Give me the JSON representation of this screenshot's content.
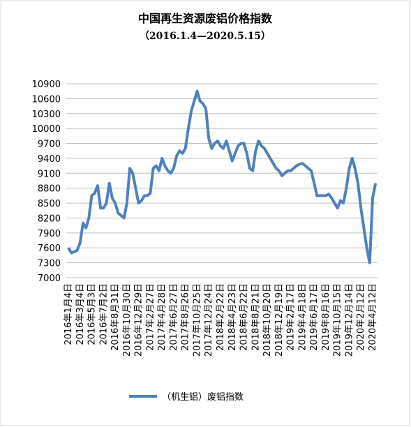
{
  "chart_data": {
    "type": "line",
    "title": "中国再生资源废铝价格指数",
    "subtitle": "（2016.1.4—2020.5.15）",
    "categories": [
      "2016年1月4日",
      null,
      null,
      null,
      "2016年3月4日",
      null,
      null,
      null,
      "2016年5月3日",
      null,
      null,
      null,
      "2016年7月2日",
      null,
      null,
      null,
      "2016年8月31日",
      null,
      null,
      null,
      "2016年10月30日",
      null,
      null,
      null,
      "2016年12月29日",
      null,
      null,
      null,
      "2017年2月27日",
      null,
      null,
      null,
      "2017年4月28日",
      null,
      null,
      null,
      "2017年6月27日",
      null,
      null,
      null,
      "2017年8月26日",
      null,
      null,
      null,
      "2017年10月25日",
      null,
      null,
      null,
      "2017年12月24日",
      null,
      null,
      null,
      "2018年2月22日",
      null,
      null,
      null,
      "2018年4月23日",
      null,
      null,
      null,
      "2018年6月22日",
      null,
      null,
      null,
      "2018年8月21日",
      null,
      null,
      null,
      "2018年10月20日",
      null,
      null,
      null,
      "2018年12月19日",
      null,
      null,
      null,
      "2019年2月17日",
      null,
      null,
      null,
      "2019年4月18日",
      null,
      null,
      null,
      "2019年6月17日",
      null,
      null,
      null,
      "2019年8月16日",
      null,
      null,
      null,
      "2019年10月15日",
      null,
      null,
      null,
      "2019年12月14日",
      null,
      null,
      null,
      "2020年2月12日",
      null,
      null,
      null,
      "2020年4月12日",
      null
    ],
    "series": [
      {
        "name": "（机生铝）废铝指数",
        "color": "#4f81bd",
        "values": [
          7600,
          7500,
          7520,
          7550,
          7700,
          8100,
          8000,
          8200,
          8650,
          8700,
          8850,
          8400,
          8400,
          8500,
          8900,
          8600,
          8500,
          8300,
          8250,
          8200,
          8500,
          9200,
          9100,
          8800,
          8500,
          8550,
          8650,
          8650,
          8700,
          9200,
          9250,
          9150,
          9400,
          9250,
          9150,
          9100,
          9200,
          9450,
          9550,
          9500,
          9600,
          10000,
          10350,
          10550,
          10750,
          10550,
          10500,
          10400,
          9800,
          9600,
          9700,
          9750,
          9650,
          9600,
          9750,
          9550,
          9350,
          9500,
          9650,
          9700,
          9700,
          9500,
          9200,
          9150,
          9550,
          9750,
          9650,
          9600,
          9500,
          9400,
          9300,
          9200,
          9150,
          9050,
          9100,
          9150,
          9150,
          9200,
          9250,
          9280,
          9300,
          9250,
          9200,
          9150,
          8900,
          8650,
          8650,
          8650,
          8650,
          8680,
          8600,
          8500,
          8400,
          8550,
          8500,
          8800,
          9200,
          9400,
          9200,
          8900,
          8400,
          8000,
          7600,
          7300,
          8600,
          8900
        ]
      }
    ],
    "ylim": [
      7000,
      10900
    ],
    "yticks": [
      7000,
      7300,
      7600,
      7900,
      8200,
      8500,
      8800,
      9100,
      9400,
      9700,
      10000,
      10300,
      10600,
      10900
    ],
    "grid": true,
    "legend": "bottom"
  }
}
